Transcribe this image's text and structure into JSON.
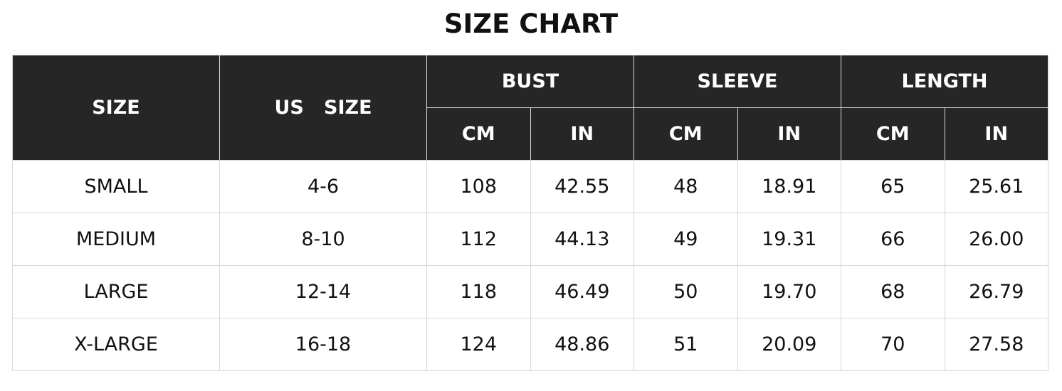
{
  "title": "SIZE CHART",
  "headers": {
    "size": "SIZE",
    "us_size": "US   SIZE",
    "groups": [
      "BUST",
      "SLEEVE",
      "LENGTH"
    ],
    "units": [
      "CM",
      "IN",
      "CM",
      "IN",
      "CM",
      "IN"
    ]
  },
  "rows": [
    [
      "SMALL",
      "4-6",
      "108",
      "42.55",
      "48",
      "18.91",
      "65",
      "25.61"
    ],
    [
      "MEDIUM",
      "8-10",
      "112",
      "44.13",
      "49",
      "19.31",
      "66",
      "26.00"
    ],
    [
      "LARGE",
      "12-14",
      "118",
      "46.49",
      "50",
      "19.70",
      "68",
      "26.79"
    ],
    [
      "X-LARGE",
      "16-18",
      "124",
      "48.86",
      "51",
      "20.09",
      "70",
      "27.58"
    ]
  ],
  "colors": {
    "header_bg": "#262626",
    "header_text": "#ffffff",
    "border": "#d8d8d8"
  }
}
